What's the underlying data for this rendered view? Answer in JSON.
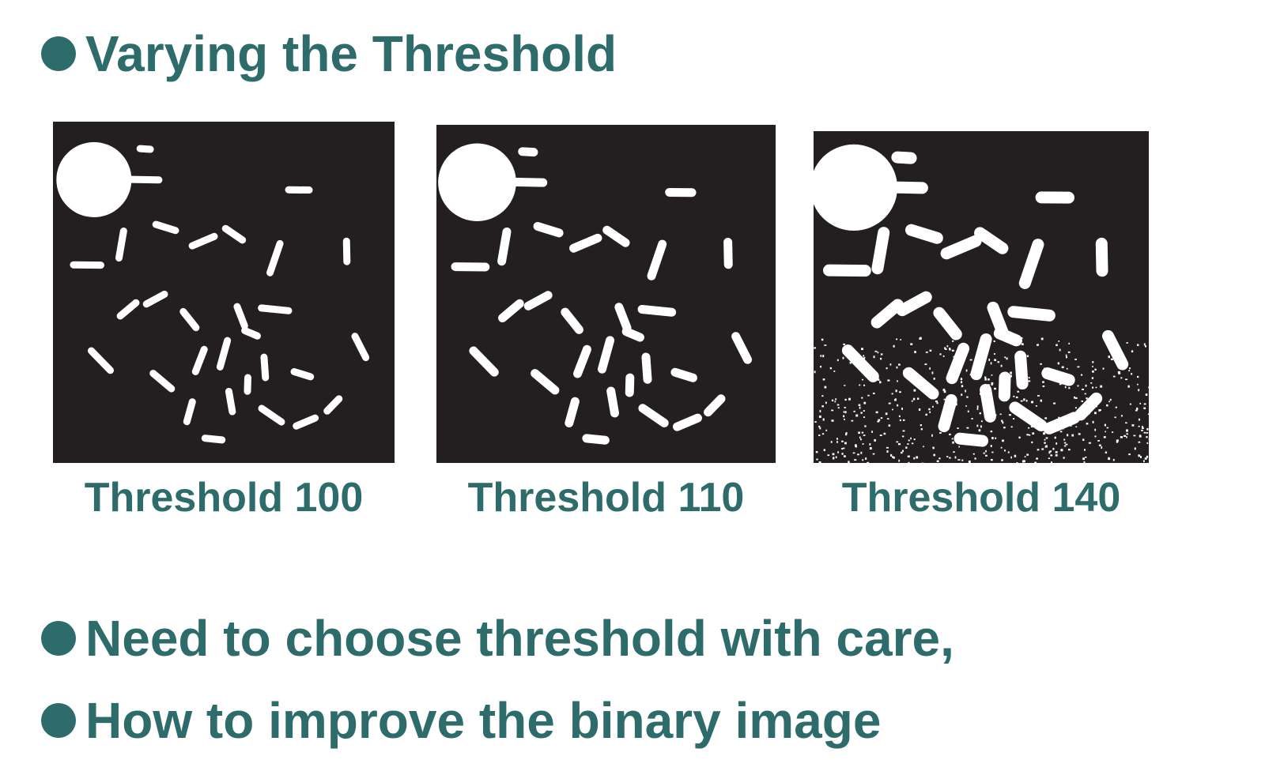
{
  "colors": {
    "accent": "#2e6b6b",
    "panel_bg": "#231f20",
    "blob": "#ffffff"
  },
  "title": {
    "text": "Varying the Threshold",
    "icon": "bullet-dot-icon"
  },
  "images": [
    {
      "caption": "Threshold 100",
      "threshold": 100
    },
    {
      "caption": "Threshold 110",
      "threshold": 110
    },
    {
      "caption": "Threshold 140",
      "threshold": 140
    }
  ],
  "bullets": [
    {
      "text": "Need to choose threshold with care,",
      "icon": "bullet-dot-icon"
    },
    {
      "text": "How to improve the binary image",
      "icon": "bullet-dot-icon"
    }
  ]
}
